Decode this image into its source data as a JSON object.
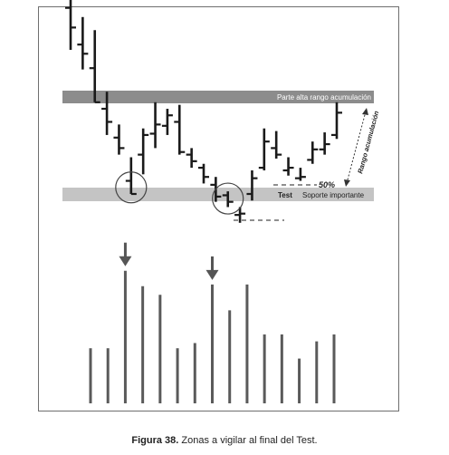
{
  "chart_data": {
    "type": "bar",
    "price_panel": {
      "zones": [
        {
          "label": "Parte alta rango acumulación",
          "level": 0.84,
          "color": "#8c8c8c"
        },
        {
          "label": "Soporte importante",
          "level": 0.1,
          "color": "#c4c4c4"
        }
      ],
      "test_label": "Test",
      "fifty_label": "50%",
      "range_label": "Rango acumulación",
      "bars": [
        {
          "h": 1.8,
          "l": 1.2,
          "o": 1.52,
          "c": 1.37
        },
        {
          "h": 1.45,
          "l": 1.05,
          "o": 1.24,
          "c": 1.17
        },
        {
          "h": 1.35,
          "l": 0.8,
          "o": 1.06,
          "c": 0.8
        },
        {
          "h": 0.88,
          "l": 0.55,
          "o": 0.75,
          "c": 0.65
        },
        {
          "h": 0.63,
          "l": 0.4,
          "o": 0.53,
          "c": 0.45
        },
        {
          "h": 0.38,
          "l": 0.1,
          "o": 0.2,
          "c": 0.1
        },
        {
          "h": 0.6,
          "l": 0.25,
          "o": 0.4,
          "c": 0.55
        },
        {
          "h": 0.8,
          "l": 0.45,
          "o": 0.56,
          "c": 0.63
        },
        {
          "h": 0.75,
          "l": 0.55,
          "o": 0.62,
          "c": 0.7
        },
        {
          "h": 0.78,
          "l": 0.4,
          "o": 0.65,
          "c": 0.42
        },
        {
          "h": 0.45,
          "l": 0.3,
          "o": 0.4,
          "c": 0.35
        },
        {
          "h": 0.33,
          "l": 0.18,
          "o": 0.3,
          "c": 0.23
        },
        {
          "h": 0.23,
          "l": 0.04,
          "o": 0.17,
          "c": 0.08
        },
        {
          "h": 0.12,
          "l": 0.0,
          "o": 0.09,
          "c": 0.04
        },
        {
          "h": 0.0,
          "l": -0.12,
          "o": -0.06,
          "c": -0.05
        },
        {
          "h": 0.28,
          "l": 0.05,
          "o": 0.1,
          "c": 0.22
        },
        {
          "h": 0.6,
          "l": 0.28,
          "o": 0.3,
          "c": 0.5
        },
        {
          "h": 0.58,
          "l": 0.37,
          "o": 0.45,
          "c": 0.4
        },
        {
          "h": 0.38,
          "l": 0.24,
          "o": 0.28,
          "c": 0.3
        },
        {
          "h": 0.3,
          "l": 0.2,
          "o": 0.22,
          "c": 0.23
        },
        {
          "h": 0.5,
          "l": 0.33,
          "o": 0.36,
          "c": 0.44
        },
        {
          "h": 0.57,
          "l": 0.4,
          "o": 0.44,
          "c": 0.48
        },
        {
          "h": 0.8,
          "l": 0.52,
          "o": 0.55,
          "c": 0.72
        }
      ],
      "support_marks": [
        5,
        13
      ]
    },
    "volume_panel": {
      "values": [
        3.2,
        3.2,
        7.7,
        6.8,
        6.3,
        3.2,
        3.5,
        6.9,
        5.4,
        6.9,
        4.0,
        4.0,
        2.6,
        3.6,
        4.0
      ],
      "arrows_at": [
        2,
        7
      ]
    }
  },
  "caption": {
    "bold": "Figura 38.",
    "rest": " Zonas a vigilar al final del Test."
  }
}
